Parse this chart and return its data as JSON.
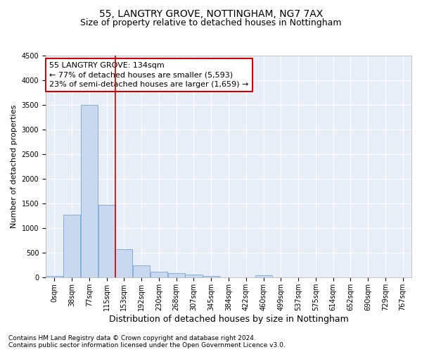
{
  "title1": "55, LANGTRY GROVE, NOTTINGHAM, NG7 7AX",
  "title2": "Size of property relative to detached houses in Nottingham",
  "xlabel": "Distribution of detached houses by size in Nottingham",
  "ylabel": "Number of detached properties",
  "bin_labels": [
    "0sqm",
    "38sqm",
    "77sqm",
    "115sqm",
    "153sqm",
    "192sqm",
    "230sqm",
    "268sqm",
    "307sqm",
    "345sqm",
    "384sqm",
    "422sqm",
    "460sqm",
    "499sqm",
    "537sqm",
    "575sqm",
    "614sqm",
    "652sqm",
    "690sqm",
    "729sqm",
    "767sqm"
  ],
  "bar_values": [
    40,
    1270,
    3500,
    1480,
    575,
    240,
    115,
    85,
    55,
    30,
    10,
    5,
    50,
    5,
    0,
    0,
    0,
    0,
    0,
    0,
    0
  ],
  "bar_color": "#c8d8ee",
  "bar_edge_color": "#6699cc",
  "ylim": [
    0,
    4500
  ],
  "yticks": [
    0,
    500,
    1000,
    1500,
    2000,
    2500,
    3000,
    3500,
    4000,
    4500
  ],
  "vline_x": 3.5,
  "vline_color": "#cc0000",
  "annotation_line1": "55 LANGTRY GROVE: 134sqm",
  "annotation_line2": "← 77% of detached houses are smaller (5,593)",
  "annotation_line3": "23% of semi-detached houses are larger (1,659) →",
  "annotation_box_color": "#cc0000",
  "footer1": "Contains HM Land Registry data © Crown copyright and database right 2024.",
  "footer2": "Contains public sector information licensed under the Open Government Licence v3.0.",
  "background_color": "#e8eef8",
  "grid_color": "#ffffff",
  "title1_fontsize": 10,
  "title2_fontsize": 9,
  "xlabel_fontsize": 9,
  "ylabel_fontsize": 8,
  "tick_fontsize": 7,
  "annotation_fontsize": 8,
  "footer_fontsize": 6.5
}
